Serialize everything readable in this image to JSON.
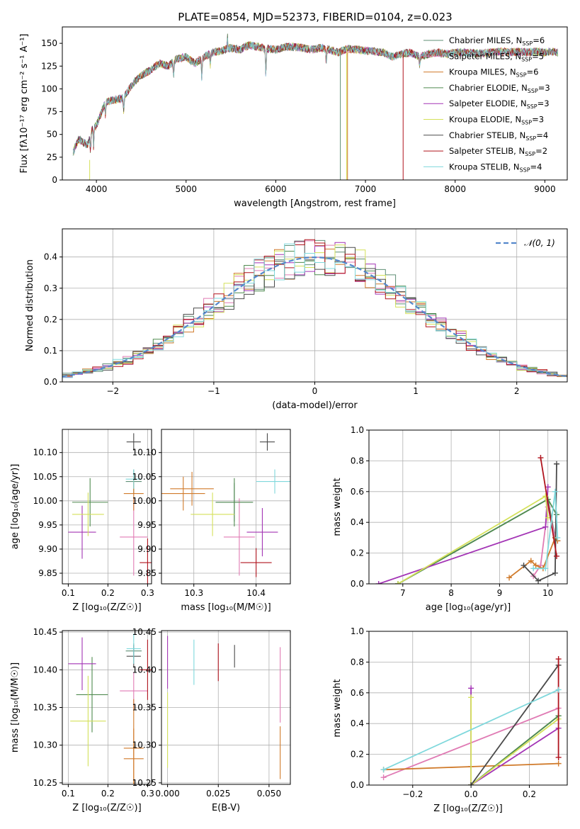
{
  "figure": {
    "title": "PLATE=0854, MJD=52373, FIBERID=0104, z=0.023"
  },
  "models": [
    {
      "name": "Chabrier MILES",
      "nssp": "6",
      "color": "#5f8f76"
    },
    {
      "name": "Salpeter MILES",
      "nssp": "5",
      "color": "#e07bb4"
    },
    {
      "name": "Kroupa MILES",
      "nssp": "6",
      "color": "#d07a2a"
    },
    {
      "name": "Chabrier ELODIE",
      "nssp": "3",
      "color": "#4f8a4f"
    },
    {
      "name": "Salpeter ELODIE",
      "nssp": "3",
      "color": "#a334b5"
    },
    {
      "name": "Kroupa ELODIE",
      "nssp": "3",
      "color": "#d4e15a"
    },
    {
      "name": "Chabrier STELIB",
      "nssp": "4",
      "color": "#4a4a4a"
    },
    {
      "name": "Salpeter STELIB",
      "nssp": "2",
      "color": "#b0141e"
    },
    {
      "name": "Kroupa STELIB",
      "nssp": "4",
      "color": "#7fd8dc"
    }
  ],
  "chart_data": [
    {
      "id": "spectrum",
      "type": "line",
      "xlabel": "wavelength [Angstrom, rest frame]",
      "ylabel": "Flux [fλ10⁻¹⁷ erg cm⁻² s⁻¹ A⁻¹]",
      "xlim": [
        3620,
        9250
      ],
      "ylim": [
        0,
        168
      ],
      "xticks": [
        4000,
        5000,
        6000,
        7000,
        8000,
        9000
      ],
      "yticks": [
        0,
        25,
        50,
        75,
        100,
        125,
        150
      ],
      "legend": "upper right",
      "legend_suffix": "N",
      "legend_sub": "SSP",
      "continuum": [
        [
          3740,
          30
        ],
        [
          3800,
          45
        ],
        [
          3900,
          38
        ],
        [
          3950,
          55
        ],
        [
          4000,
          60
        ],
        [
          4100,
          85
        ],
        [
          4200,
          88
        ],
        [
          4300,
          90
        ],
        [
          4400,
          105
        ],
        [
          4500,
          115
        ],
        [
          4600,
          120
        ],
        [
          4700,
          128
        ],
        [
          4800,
          125
        ],
        [
          4900,
          133
        ],
        [
          5000,
          135
        ],
        [
          5100,
          128
        ],
        [
          5200,
          135
        ],
        [
          5300,
          140
        ],
        [
          5400,
          142
        ],
        [
          5500,
          145
        ],
        [
          5600,
          143
        ],
        [
          5700,
          148
        ],
        [
          5800,
          146
        ],
        [
          5900,
          144
        ],
        [
          6000,
          143
        ],
        [
          6100,
          146
        ],
        [
          6200,
          146
        ],
        [
          6300,
          145
        ],
        [
          6400,
          143
        ],
        [
          6500,
          145
        ],
        [
          6600,
          143
        ],
        [
          6700,
          140
        ],
        [
          6800,
          144
        ],
        [
          6900,
          143
        ],
        [
          7000,
          142
        ],
        [
          7100,
          141
        ],
        [
          7200,
          140
        ],
        [
          7300,
          135
        ],
        [
          7400,
          138
        ],
        [
          7500,
          140
        ],
        [
          7600,
          135
        ],
        [
          7700,
          138
        ],
        [
          7800,
          140
        ],
        [
          7900,
          138
        ],
        [
          8000,
          140
        ],
        [
          8100,
          140
        ],
        [
          8200,
          139
        ],
        [
          8300,
          139
        ],
        [
          8400,
          140
        ],
        [
          8500,
          141
        ],
        [
          8600,
          140
        ],
        [
          8700,
          141
        ],
        [
          8800,
          140
        ],
        [
          8900,
          141
        ],
        [
          9000,
          140
        ],
        [
          9100,
          141
        ],
        [
          9150,
          140
        ]
      ],
      "absorption_dips": [
        [
          3934,
          18
        ],
        [
          3969,
          20
        ],
        [
          4101,
          15
        ],
        [
          4304,
          15
        ],
        [
          4861,
          15
        ],
        [
          5175,
          22
        ],
        [
          5270,
          12
        ],
        [
          5890,
          30
        ],
        [
          6563,
          15
        ],
        [
          7605,
          10
        ]
      ],
      "emission_spike": [
        5460,
        163
      ],
      "verticals": [
        {
          "x": 3925,
          "ylo": 0,
          "yhi": 22,
          "model": 5
        },
        {
          "x": 6720,
          "ylo": 0,
          "yhi": 140,
          "model": 0
        },
        {
          "x": 6790,
          "ylo": 0,
          "yhi": 145,
          "model": 5
        },
        {
          "x": 6800,
          "ylo": 0,
          "yhi": 140,
          "model": 2
        },
        {
          "x": 7420,
          "ylo": 0,
          "yhi": 138,
          "model": 7
        }
      ]
    },
    {
      "id": "residuals",
      "type": "histogram",
      "xlabel": "(data-model)/error",
      "ylabel": "Normed distribution",
      "xlim": [
        -2.5,
        2.5
      ],
      "ylim": [
        0,
        0.49
      ],
      "xticks": [
        -2,
        -1,
        0,
        1,
        2
      ],
      "yticks": [
        0.0,
        0.1,
        0.2,
        0.3,
        0.4
      ],
      "bin_width": 0.1,
      "gaussian_label": "𝒩(0, 1)",
      "gaussian_color": "#5588cc"
    },
    {
      "id": "age_vs_Z",
      "type": "errorbar",
      "xlabel": "Z [log₁₀(Z/Z☉)]",
      "ylabel": "age  [log₁₀(age/yr)]",
      "xlim": [
        0.085,
        0.31
      ],
      "ylim": [
        9.828,
        10.148
      ],
      "xticks": [
        0.1,
        0.2,
        0.3
      ],
      "yticks": [
        9.85,
        9.9,
        9.95,
        10.0,
        10.05,
        10.1
      ],
      "points": [
        {
          "model": 0,
          "x": 0.265,
          "y": 10.04,
          "xerr": 0.02,
          "yerr": 0.025
        },
        {
          "model": 1,
          "x": 0.265,
          "y": 9.925,
          "xerr": 0.035,
          "yerr": 0.08
        },
        {
          "model": 2,
          "x": 0.265,
          "y": 10.015,
          "xerr": 0.025,
          "yerr": 0.035
        },
        {
          "model": 3,
          "x": 0.155,
          "y": 9.997,
          "xerr": 0.045,
          "yerr": 0.05
        },
        {
          "model": 4,
          "x": 0.135,
          "y": 9.935,
          "xerr": 0.035,
          "yerr": 0.055
        },
        {
          "model": 5,
          "x": 0.15,
          "y": 9.972,
          "xerr": 0.04,
          "yerr": 0.045
        },
        {
          "model": 6,
          "x": 0.265,
          "y": 10.122,
          "xerr": 0.018,
          "yerr": 0.018
        },
        {
          "model": 7,
          "x": 0.3,
          "y": 9.872,
          "xerr": 0.02,
          "yerr": 0.05
        },
        {
          "model": 8,
          "x": 0.265,
          "y": 10.045,
          "xerr": 0.02,
          "yerr": 0.02
        }
      ]
    },
    {
      "id": "age_vs_mass",
      "type": "errorbar",
      "xlabel": "mass [log₁₀(M/M☉)]",
      "ylabel": "",
      "xlim": [
        10.248,
        10.455
      ],
      "ylim": [
        9.828,
        10.148
      ],
      "xticks": [
        10.3,
        10.4
      ],
      "yticks": [
        9.85,
        9.9,
        9.95,
        10.0,
        10.05,
        10.1
      ],
      "points": [
        {
          "model": 0,
          "x": 10.365,
          "y": 9.997,
          "xerr": 0.03,
          "yerr": 0.04
        },
        {
          "model": 1,
          "x": 10.373,
          "y": 9.925,
          "xerr": 0.025,
          "yerr": 0.08
        },
        {
          "model": 2,
          "x": 10.283,
          "y": 10.015,
          "xerr": 0.035,
          "yerr": 0.035
        },
        {
          "model": 3,
          "x": 10.365,
          "y": 9.997,
          "xerr": 0.03,
          "yerr": 0.05
        },
        {
          "model": 4,
          "x": 10.41,
          "y": 9.935,
          "xerr": 0.025,
          "yerr": 0.05
        },
        {
          "model": 5,
          "x": 10.33,
          "y": 9.972,
          "xerr": 0.035,
          "yerr": 0.045
        },
        {
          "model": 6,
          "x": 10.418,
          "y": 10.122,
          "xerr": 0.012,
          "yerr": 0.018
        },
        {
          "model": 7,
          "x": 10.4,
          "y": 9.872,
          "xerr": 0.025,
          "yerr": 0.03
        },
        {
          "model": 8,
          "x": 10.43,
          "y": 10.04,
          "xerr": 0.03,
          "yerr": 0.025
        },
        {
          "model": 2,
          "x": 10.297,
          "y": 10.025,
          "xerr": 0.035,
          "yerr": 0.035
        }
      ]
    },
    {
      "id": "weight_vs_age",
      "type": "line",
      "xlabel": "age  [log₁₀(age/yr)]",
      "ylabel": "mass weight",
      "xlim": [
        6.3,
        10.4
      ],
      "ylim": [
        0,
        1.0
      ],
      "xticks": [
        7,
        8,
        9,
        10
      ],
      "yticks": [
        0.0,
        0.2,
        0.4,
        0.6,
        0.8,
        1.0
      ],
      "series": [
        {
          "model": 0,
          "x": [
            6.9,
            10.0,
            10.15,
            10.18
          ],
          "y": [
            0.0,
            0.55,
            0.3,
            0.45
          ]
        },
        {
          "model": 1,
          "x": [
            9.7,
            9.85,
            10.0,
            10.15,
            10.2
          ],
          "y": [
            0.05,
            0.12,
            0.5,
            0.3,
            0.28
          ]
        },
        {
          "model": 2,
          "x": [
            9.2,
            9.65,
            9.75,
            9.9,
            10.15,
            10.2
          ],
          "y": [
            0.04,
            0.15,
            0.12,
            0.1,
            0.3,
            0.28
          ]
        },
        {
          "model": 3,
          "x": [
            6.9,
            10.0,
            10.18
          ],
          "y": [
            0.0,
            0.55,
            0.45
          ]
        },
        {
          "model": 4,
          "x": [
            6.5,
            9.95,
            10.0
          ],
          "y": [
            0.0,
            0.37,
            0.63
          ]
        },
        {
          "model": 5,
          "x": [
            6.9,
            9.95,
            10.0
          ],
          "y": [
            0.0,
            0.57,
            0.43
          ]
        },
        {
          "model": 6,
          "x": [
            9.5,
            9.8,
            10.15,
            10.18
          ],
          "y": [
            0.12,
            0.02,
            0.07,
            0.78
          ]
        },
        {
          "model": 7,
          "x": [
            9.85,
            10.18
          ],
          "y": [
            0.82,
            0.18
          ]
        },
        {
          "model": 8,
          "x": [
            9.7,
            9.95,
            10.15,
            10.2
          ],
          "y": [
            0.1,
            0.1,
            0.6,
            0.3
          ]
        }
      ]
    },
    {
      "id": "mass_vs_Z",
      "type": "errorbar",
      "xlabel": "Z [log₁₀(Z/Z☉)]",
      "ylabel": "mass [log₁₀(M/M☉)]",
      "xlim": [
        0.085,
        0.31
      ],
      "ylim": [
        10.248,
        10.452
      ],
      "xticks": [
        0.1,
        0.2,
        0.3
      ],
      "yticks": [
        10.25,
        10.3,
        10.35,
        10.4,
        10.45
      ],
      "points": [
        {
          "model": 0,
          "x": 0.265,
          "y": 10.425,
          "xerr": 0.02,
          "yerr": 0.01
        },
        {
          "model": 1,
          "x": 0.265,
          "y": 10.372,
          "xerr": 0.035,
          "yerr": 0.025
        },
        {
          "model": 2,
          "x": 0.265,
          "y": 10.282,
          "xerr": 0.025,
          "yerr": 0.04
        },
        {
          "model": 3,
          "x": 0.16,
          "y": 10.367,
          "xerr": 0.04,
          "yerr": 0.05
        },
        {
          "model": 4,
          "x": 0.135,
          "y": 10.408,
          "xerr": 0.035,
          "yerr": 0.035
        },
        {
          "model": 5,
          "x": 0.15,
          "y": 10.332,
          "xerr": 0.045,
          "yerr": 0.06
        },
        {
          "model": 6,
          "x": 0.265,
          "y": 10.418,
          "xerr": 0.018,
          "yerr": 0.015
        },
        {
          "model": 7,
          "x": 0.3,
          "y": 10.4,
          "xerr": 0.02,
          "yerr": 0.04
        },
        {
          "model": 8,
          "x": 0.265,
          "y": 10.428,
          "xerr": 0.018,
          "yerr": 0.02
        },
        {
          "model": 2,
          "x": 0.265,
          "y": 10.296,
          "xerr": 0.025,
          "yerr": 0.065
        }
      ]
    },
    {
      "id": "mass_vs_EBV",
      "type": "errorbar",
      "xlabel": "E(B-V)",
      "ylabel": "",
      "xlim": [
        -0.003,
        0.0605
      ],
      "ylim": [
        10.248,
        10.452
      ],
      "xticks": [
        0.0,
        0.025,
        0.05
      ],
      "yticks": [
        10.25,
        10.3,
        10.35,
        10.4,
        10.45
      ],
      "points": [
        {
          "model": 4,
          "x": 0.0,
          "y": 10.41,
          "xerr": 0,
          "yerr": 0.035
        },
        {
          "model": 5,
          "x": 0.0,
          "y": 10.32,
          "xerr": 0,
          "yerr": 0.05
        },
        {
          "model": 8,
          "x": 0.013,
          "y": 10.41,
          "xerr": 0,
          "yerr": 0.03
        },
        {
          "model": 7,
          "x": 0.025,
          "y": 10.41,
          "xerr": 0,
          "yerr": 0.025
        },
        {
          "model": 6,
          "x": 0.033,
          "y": 10.418,
          "xerr": 0,
          "yerr": 0.015
        },
        {
          "model": 1,
          "x": 0.0555,
          "y": 10.38,
          "xerr": 0,
          "yerr": 0.05
        },
        {
          "model": 2,
          "x": 0.0555,
          "y": 10.29,
          "xerr": 0,
          "yerr": 0.035
        }
      ]
    },
    {
      "id": "weight_vs_Z",
      "type": "line",
      "xlabel": "Z [log₁₀(Z/Z☉)]",
      "ylabel": "mass weight",
      "xlim": [
        -0.35,
        0.33
      ],
      "ylim": [
        0,
        1.0
      ],
      "xticks": [
        -0.2,
        0.0,
        0.2
      ],
      "yticks": [
        0.0,
        0.2,
        0.4,
        0.6,
        0.8,
        1.0
      ],
      "series": [
        {
          "model": 0,
          "x": [
            0.0,
            0.3
          ],
          "y": [
            0.0,
            0.45
          ]
        },
        {
          "model": 1,
          "x": [
            -0.3,
            0.3
          ],
          "y": [
            0.05,
            0.5
          ]
        },
        {
          "model": 2,
          "x": [
            -0.3,
            0.0,
            0.3
          ],
          "y": [
            0.1,
            0.12,
            0.14
          ]
        },
        {
          "model": 3,
          "x": [
            0.0,
            0.3
          ],
          "y": [
            0.0,
            0.45
          ]
        },
        {
          "model": 4,
          "x": [
            0.0,
            0.0,
            0.0,
            0.3
          ],
          "y": [
            0.63,
            0.0,
            0.0,
            0.37
          ]
        },
        {
          "model": 5,
          "x": [
            0.0,
            0.0,
            0.0,
            0.3
          ],
          "y": [
            0.57,
            0.0,
            0.0,
            0.43
          ]
        },
        {
          "model": 6,
          "x": [
            0.0,
            0.3
          ],
          "y": [
            0.0,
            0.78
          ]
        },
        {
          "model": 7,
          "x": [
            0.3,
            0.3
          ],
          "y": [
            0.82,
            0.18
          ]
        },
        {
          "model": 8,
          "x": [
            -0.3,
            0.3
          ],
          "y": [
            0.1,
            0.62
          ]
        }
      ]
    }
  ]
}
